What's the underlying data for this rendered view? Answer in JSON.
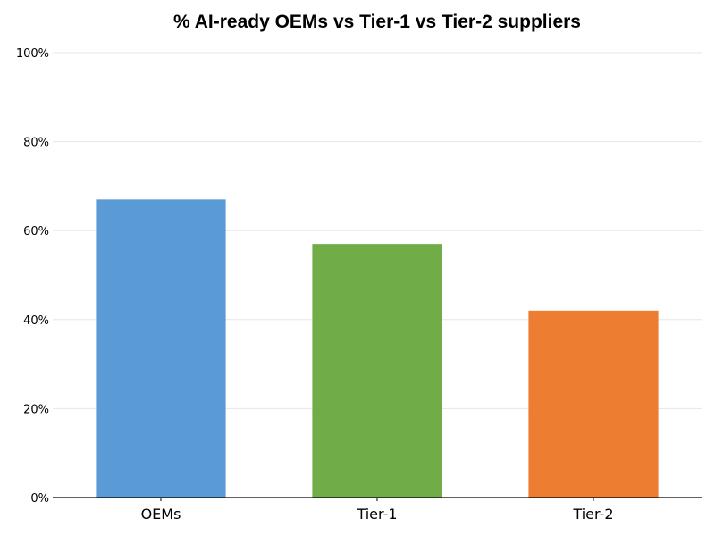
{
  "chart_data": {
    "type": "bar",
    "title": "% AI-ready OEMs vs Tier-1 vs Tier-2 suppliers",
    "xlabel": "",
    "ylabel": "",
    "categories": [
      "OEMs",
      "Tier-1",
      "Tier-2"
    ],
    "values": [
      67,
      57,
      42
    ],
    "colors": [
      "#5b9bd5",
      "#70ad47",
      "#ed7d31"
    ],
    "ylim": [
      0,
      100
    ],
    "yticks": [
      0,
      20,
      40,
      60,
      80,
      100
    ],
    "ytick_labels": [
      "0%",
      "20%",
      "40%",
      "60%",
      "80%",
      "100%"
    ],
    "grid": true,
    "legend": "none"
  }
}
